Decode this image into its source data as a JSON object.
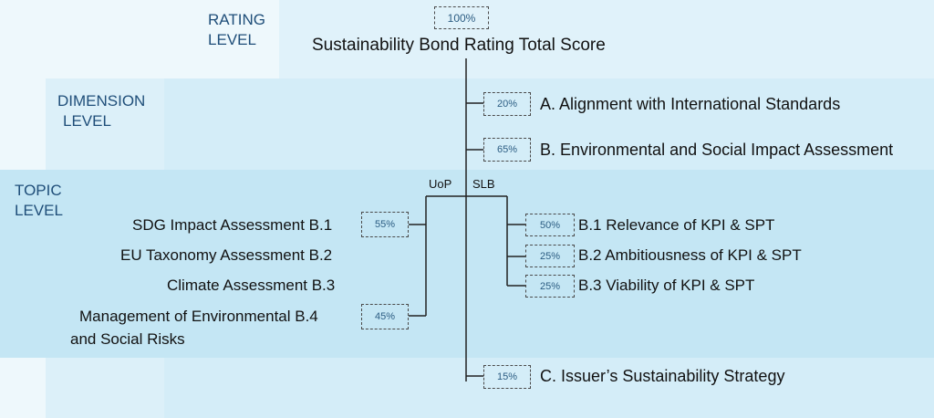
{
  "levels": {
    "rating": [
      "RATING",
      "LEVEL"
    ],
    "dimension": [
      "DIMENSION",
      "LEVEL"
    ],
    "topic": [
      "TOPIC",
      "LEVEL"
    ]
  },
  "root": {
    "weight": "100%",
    "label": "Sustainability Bond Rating Total Score"
  },
  "dimensions": {
    "a": {
      "weight": "20%",
      "label": "A. Alignment with International Standards"
    },
    "b": {
      "weight": "65%",
      "label": "B. Environmental and Social Impact Assessment"
    },
    "c": {
      "weight": "15%",
      "label": "C. Issuer’s Sustainability Strategy"
    }
  },
  "branches": {
    "uop": "UoP",
    "slb": "SLB"
  },
  "uop_topics": {
    "sdg": {
      "label": "SDG Impact Assessment B.1",
      "weight": "55%"
    },
    "eu": {
      "label": "EU Taxonomy Assessment B.2"
    },
    "climate": {
      "label": "Climate Assessment B.3"
    },
    "mgmt": {
      "label_line1": "Management of Environmental B.4",
      "label_line2": "and Social Risks",
      "weight": "45%"
    }
  },
  "slb_topics": {
    "b1": {
      "weight": "50%",
      "label": "B.1 Relevance of KPI & SPT"
    },
    "b2": {
      "weight": "25%",
      "label": "B.2 Ambitiousness of KPI & SPT"
    },
    "b3": {
      "weight": "25%",
      "label": "B.3 Viability of KPI & SPT"
    }
  }
}
